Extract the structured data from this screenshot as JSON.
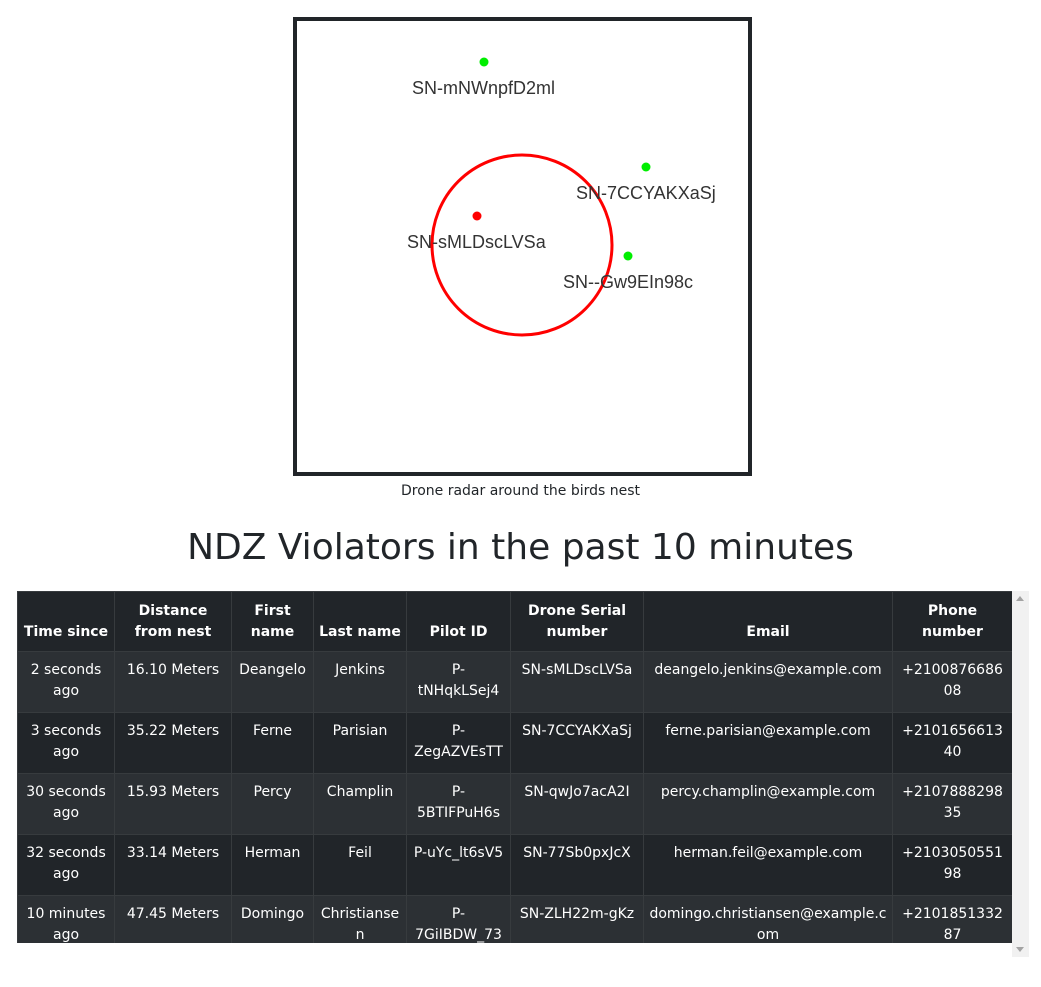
{
  "radar": {
    "caption": "Drone radar around the birds nest",
    "ndz_circle_color": "#ff0000",
    "drones": [
      {
        "serial": "SN-mNWnpfD2ml",
        "status": "safe",
        "color": "#00ee00"
      },
      {
        "serial": "SN-7CCYAKXaSj",
        "status": "safe",
        "color": "#00ee00"
      },
      {
        "serial": "SN-sMLDscLVSa",
        "status": "violating",
        "color": "#ff0000"
      },
      {
        "serial": "SN--Gw9EIn98c",
        "status": "safe",
        "color": "#00ee00"
      }
    ]
  },
  "title": "NDZ Violators in the past 10 minutes",
  "table": {
    "headers": [
      "Time since",
      "Distance from nest",
      "First name",
      "Last name",
      "Pilot ID",
      "Drone Serial number",
      "Email",
      "Phone number"
    ],
    "rows": [
      [
        "2 seconds ago",
        "16.10 Meters",
        "Deangelo",
        "Jenkins",
        "P-tNHqkLSej4",
        "SN-sMLDscLVSa",
        "deangelo.jenkins@example.com",
        "+210087668608"
      ],
      [
        "3 seconds ago",
        "35.22 Meters",
        "Ferne",
        "Parisian",
        "P-ZegAZVEsTT",
        "SN-7CCYAKXaSj",
        "ferne.parisian@example.com",
        "+210165661340"
      ],
      [
        "30 seconds ago",
        "15.93 Meters",
        "Percy",
        "Champlin",
        "P-5BTIFPuH6s",
        "SN-qwJo7acA2I",
        "percy.champlin@example.com",
        "+210788829835"
      ],
      [
        "32 seconds ago",
        "33.14 Meters",
        "Herman",
        "Feil",
        "P-uYc_lt6sV5",
        "SN-77Sb0pxJcX",
        "herman.feil@example.com",
        "+210305055198"
      ],
      [
        "10 minutes ago",
        "47.45 Meters",
        "Domingo",
        "Christiansen",
        "P-7GiIBDW_73",
        "SN-ZLH22m-gKz",
        "domingo.christiansen@example.com",
        "+210185133287"
      ]
    ]
  },
  "colors": {
    "table_bg": "#212529",
    "table_row_stripe": "#2c3034",
    "drone_safe": "#00ee00",
    "drone_violating": "#ff0000"
  }
}
